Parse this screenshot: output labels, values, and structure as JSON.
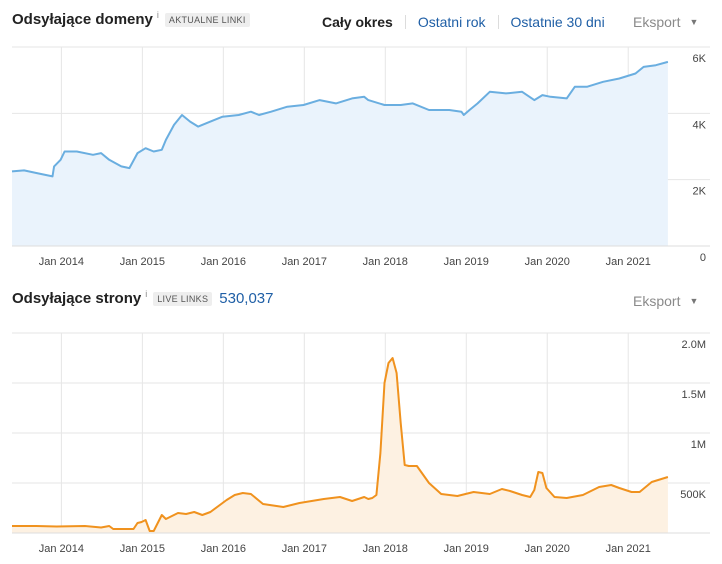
{
  "chart1": {
    "title": "Odsyłające domeny",
    "info": "i",
    "badge": "AKTUALNE LINKI",
    "range": {
      "all": "Cały okres",
      "year": "Ostatni rok",
      "days30": "Ostatnie 30 dni"
    },
    "export": "Eksport"
  },
  "chart2": {
    "title": "Odsyłające strony",
    "info": "i",
    "badge": "LIVE LINKS",
    "count": "530,037",
    "export": "Eksport"
  },
  "colors": {
    "domains_line": "#6aaee0",
    "domains_fill": "#eaf3fc",
    "pages_line": "#f0921e",
    "pages_fill": "#fdf1e2",
    "grid": "#e6e6e6"
  },
  "chart_data": [
    {
      "type": "area",
      "title": "Odsyłające domeny",
      "x_tick_labels": [
        "Jan 2014",
        "Jan 2015",
        "Jan 2016",
        "Jan 2017",
        "Jan 2018",
        "Jan 2019",
        "Jan 2020",
        "Jan 2021"
      ],
      "y_tick_labels": [
        "6K",
        "4K",
        "2K",
        "0"
      ],
      "ylim": [
        0,
        6000
      ],
      "xlim": [
        2013.4,
        2021.6
      ],
      "grid": true,
      "series": [
        {
          "x": [
            2013.4,
            2013.55,
            2013.7,
            2013.9,
            2013.92,
            2014.0,
            2014.05,
            2014.2,
            2014.4,
            2014.5,
            2014.6,
            2014.75,
            2014.85,
            2014.95,
            2015.05,
            2015.15,
            2015.25,
            2015.3,
            2015.4,
            2015.5,
            2015.6,
            2015.7,
            2015.85,
            2016.0,
            2016.2,
            2016.35,
            2016.45,
            2016.6,
            2016.8,
            2017.0,
            2017.2,
            2017.4,
            2017.6,
            2017.75,
            2017.8,
            2018.0,
            2018.2,
            2018.35,
            2018.55,
            2018.8,
            2018.95,
            2018.98,
            2019.05,
            2019.15,
            2019.3,
            2019.5,
            2019.7,
            2019.85,
            2019.95,
            2020.05,
            2020.25,
            2020.35,
            2020.5,
            2020.7,
            2020.9,
            2021.1,
            2021.2,
            2021.35,
            2021.5
          ],
          "y": [
            2250,
            2280,
            2200,
            2100,
            2400,
            2600,
            2850,
            2850,
            2750,
            2800,
            2600,
            2400,
            2350,
            2800,
            2950,
            2850,
            2900,
            3200,
            3650,
            3950,
            3750,
            3600,
            3750,
            3900,
            3950,
            4050,
            3950,
            4050,
            4200,
            4250,
            4400,
            4300,
            4450,
            4500,
            4400,
            4250,
            4250,
            4300,
            4100,
            4100,
            4050,
            3950,
            4100,
            4300,
            4650,
            4600,
            4650,
            4400,
            4550,
            4500,
            4450,
            4800,
            4800,
            4950,
            5050,
            5200,
            5400,
            5450,
            5550
          ],
          "values_unit": "domains"
        }
      ]
    },
    {
      "type": "area",
      "title": "Odsyłające strony",
      "x_tick_labels": [
        "Jan 2014",
        "Jan 2015",
        "Jan 2016",
        "Jan 2017",
        "Jan 2018",
        "Jan 2019",
        "Jan 2020",
        "Jan 2021"
      ],
      "y_tick_labels": [
        "2.0M",
        "1.5M",
        "1M",
        "500K"
      ],
      "ylim": [
        0,
        2000000
      ],
      "xlim": [
        2013.4,
        2021.6
      ],
      "grid": true,
      "series": [
        {
          "x": [
            2013.4,
            2013.7,
            2013.95,
            2014.3,
            2014.5,
            2014.6,
            2014.65,
            2014.9,
            2014.95,
            2015.0,
            2015.05,
            2015.1,
            2015.15,
            2015.25,
            2015.3,
            2015.45,
            2015.55,
            2015.65,
            2015.75,
            2015.85,
            2016.05,
            2016.15,
            2016.25,
            2016.35,
            2016.5,
            2016.75,
            2016.95,
            2017.25,
            2017.45,
            2017.6,
            2017.75,
            2017.8,
            2017.85,
            2017.9,
            2017.95,
            2018.0,
            2018.05,
            2018.1,
            2018.15,
            2018.2,
            2018.25,
            2018.3,
            2018.4,
            2018.55,
            2018.7,
            2018.9,
            2019.1,
            2019.3,
            2019.45,
            2019.55,
            2019.7,
            2019.8,
            2019.85,
            2019.9,
            2019.95,
            2020.0,
            2020.1,
            2020.25,
            2020.45,
            2020.65,
            2020.8,
            2020.9,
            2021.05,
            2021.15,
            2021.3,
            2021.5
          ],
          "y": [
            70000,
            70000,
            65000,
            70000,
            55000,
            70000,
            40000,
            40000,
            100000,
            110000,
            130000,
            20000,
            20000,
            180000,
            140000,
            200000,
            190000,
            210000,
            180000,
            210000,
            330000,
            380000,
            400000,
            390000,
            290000,
            260000,
            300000,
            340000,
            360000,
            320000,
            360000,
            340000,
            350000,
            380000,
            800000,
            1500000,
            1700000,
            1750000,
            1600000,
            1100000,
            680000,
            670000,
            670000,
            500000,
            390000,
            370000,
            410000,
            390000,
            440000,
            420000,
            380000,
            360000,
            430000,
            610000,
            600000,
            450000,
            360000,
            350000,
            380000,
            460000,
            480000,
            450000,
            410000,
            410000,
            510000,
            560000
          ],
          "values_unit": "pages"
        }
      ]
    }
  ]
}
